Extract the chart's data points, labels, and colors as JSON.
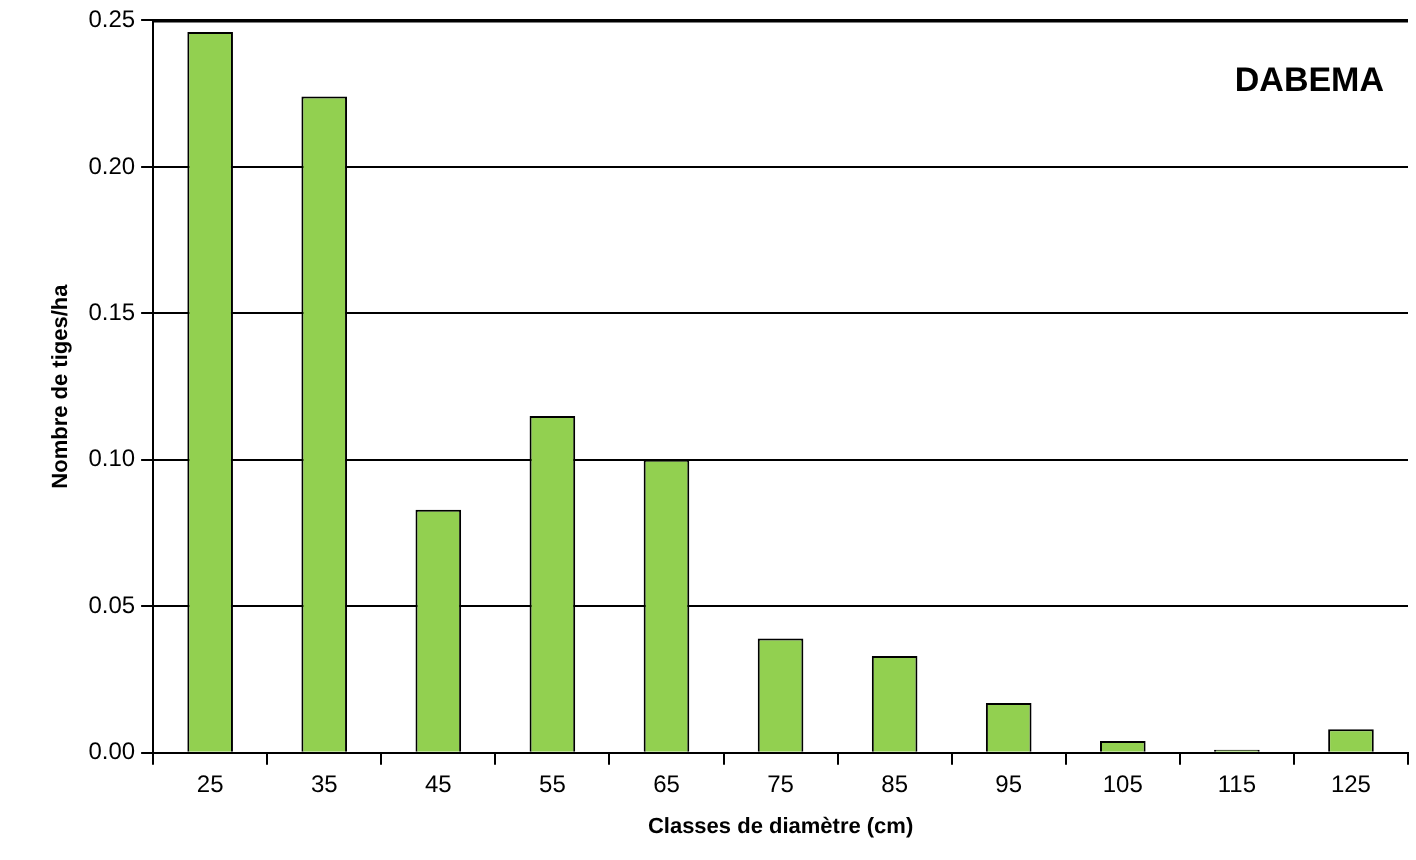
{
  "chart_data": {
    "type": "bar",
    "title": "DABEMA",
    "xlabel": "Classes de diamètre (cm)",
    "ylabel": "Nombre de tiges/ha",
    "categories": [
      "25",
      "35",
      "45",
      "55",
      "65",
      "75",
      "85",
      "95",
      "105",
      "115",
      "125"
    ],
    "values": [
      0.246,
      0.224,
      0.083,
      0.115,
      0.1,
      0.039,
      0.033,
      0.017,
      0.004,
      0.001,
      0.008
    ],
    "color": "#92d050",
    "ylim": [
      0,
      0.25
    ],
    "yticks": [
      {
        "value": 0,
        "label": "0.00"
      },
      {
        "value": 0.05,
        "label": "0.05"
      },
      {
        "value": 0.1,
        "label": "0.10"
      },
      {
        "value": 0.15,
        "label": "0.15"
      },
      {
        "value": 0.2,
        "label": "0.20"
      },
      {
        "value": 0.25,
        "label": "0.25"
      }
    ],
    "grid": "y",
    "legend": false
  }
}
